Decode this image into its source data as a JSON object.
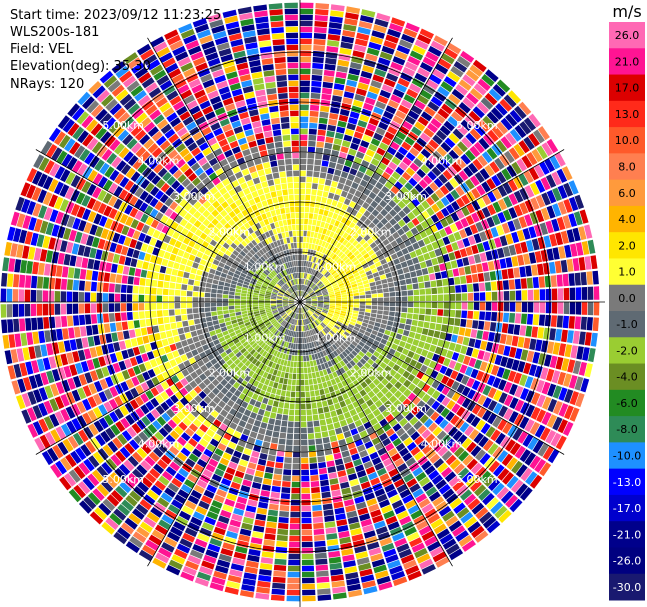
{
  "header": {
    "start_time": "Start time: 2023/09/12 11:23:25",
    "instrument": "WLS200s-181",
    "field": "Field: VEL",
    "elevation": "Elevation(deg): 35.30",
    "nrays": "NRays: 120"
  },
  "chart_data": {
    "type": "heatmap",
    "projection": "polar-ppi",
    "field": "VEL",
    "n_rays": 120,
    "range_rings": [
      {
        "label": "1.00km",
        "value": 1.0
      },
      {
        "label": "2.00km",
        "value": 2.0
      },
      {
        "label": "3.00km",
        "value": 3.0
      },
      {
        "label": "4.00km",
        "value": 4.0
      },
      {
        "label": "5.00km",
        "value": 5.0
      }
    ],
    "max_range_km": 6.1,
    "colorbar": {
      "unit": "m/s",
      "ticks": [
        "26.0",
        "21.0",
        "17.0",
        "13.0",
        "10.0",
        "8.0",
        "6.0",
        "4.0",
        "2.0",
        "1.0",
        "0.0",
        "-1.0",
        "-2.0",
        "-4.0",
        "-6.0",
        "-8.0",
        "-10.0",
        "-13.0",
        "-17.0",
        "-21.0",
        "-26.0",
        "-30.0"
      ],
      "bins": [
        {
          "min": 26,
          "max": 30,
          "color": "#ff69b4"
        },
        {
          "min": 21,
          "max": 26,
          "color": "#ff1493"
        },
        {
          "min": 17,
          "max": 21,
          "color": "#dc0000"
        },
        {
          "min": 13,
          "max": 17,
          "color": "#ff2a1a"
        },
        {
          "min": 10,
          "max": 13,
          "color": "#ff5a2a"
        },
        {
          "min": 8,
          "max": 10,
          "color": "#ff7f50"
        },
        {
          "min": 6,
          "max": 8,
          "color": "#ff9a3c"
        },
        {
          "min": 4,
          "max": 6,
          "color": "#ffb400"
        },
        {
          "min": 2,
          "max": 4,
          "color": "#ffe600"
        },
        {
          "min": 1,
          "max": 2,
          "color": "#ffff33"
        },
        {
          "min": 0,
          "max": 1,
          "color": "#7a7a7a"
        },
        {
          "min": -1,
          "max": 0,
          "color": "#5f6a73"
        },
        {
          "min": -2,
          "max": -1,
          "color": "#9acd32"
        },
        {
          "min": -4,
          "max": -2,
          "color": "#6b8e23"
        },
        {
          "min": -6,
          "max": -4,
          "color": "#228b22"
        },
        {
          "min": -8,
          "max": -6,
          "color": "#2e8b57"
        },
        {
          "min": -10,
          "max": -8,
          "color": "#1e90ff"
        },
        {
          "min": -13,
          "max": -10,
          "color": "#0000ff"
        },
        {
          "min": -17,
          "max": -13,
          "color": "#0000cd"
        },
        {
          "min": -21,
          "max": -17,
          "color": "#00008b"
        },
        {
          "min": -26,
          "max": -21,
          "color": "#000080"
        },
        {
          "min": -30,
          "max": -26,
          "color": "#191970"
        }
      ]
    }
  }
}
